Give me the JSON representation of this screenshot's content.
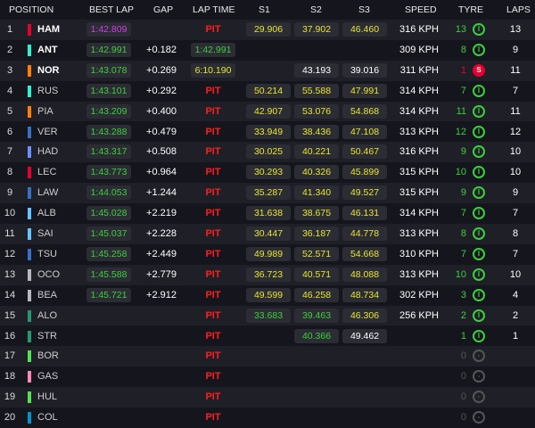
{
  "header": [
    "POSITION",
    "BEST LAP",
    "GAP",
    "LAP TIME",
    "S1",
    "S2",
    "S3",
    "SPEED",
    "TYRE",
    "LAPS"
  ],
  "table": {
    "rows": [
      {
        "pos": 1,
        "code": "HAM",
        "team_color": "#e8002d",
        "best": "1:42.809",
        "best_color": "#d33ee8",
        "gap": null,
        "lap": "PIT",
        "lap_color": "#ff1e1e",
        "s": [
          "29.906",
          "37.902",
          "46.460"
        ],
        "sc": [
          "#e6e62e",
          "#e6e62e",
          "#e6e62e"
        ],
        "speed": "316 KPH",
        "tyre_age": 13,
        "tyre": "I",
        "tyre_color": "#3ccf3c",
        "laps": 13
      },
      {
        "pos": 2,
        "code": "ANT",
        "team_color": "#27f4d2",
        "best": "1:42.991",
        "best_color": "#3ccf3c",
        "gap": "+0.182",
        "lap": "1:42.991",
        "lap_color": "#3ccf3c",
        "s": [
          null,
          null,
          null
        ],
        "sc": [
          "#fff",
          "#fff",
          "#fff"
        ],
        "speed": "309 KPH",
        "tyre_age": 8,
        "tyre": "I",
        "tyre_color": "#3ccf3c",
        "laps": 9
      },
      {
        "pos": 3,
        "code": "NOR",
        "team_color": "#ff8000",
        "best": "1:43.078",
        "best_color": "#3ccf3c",
        "gap": "+0.269",
        "lap": "6:10.190",
        "lap_color": "#e6e62e",
        "s": [
          null,
          "43.193",
          "39.016"
        ],
        "sc": [
          "#fff",
          "#fff",
          "#fff"
        ],
        "speed": "311 KPH",
        "tyre_age": 1,
        "tyre": "S",
        "tyre_color": "#e8002d",
        "laps": 11
      },
      {
        "pos": 4,
        "code": "RUS",
        "team_color": "#27f4d2",
        "best": "1:43.101",
        "best_color": "#3ccf3c",
        "gap": "+0.292",
        "lap": "PIT",
        "lap_color": "#ff1e1e",
        "s": [
          "50.214",
          "55.588",
          "47.991"
        ],
        "sc": [
          "#e6e62e",
          "#e6e62e",
          "#e6e62e"
        ],
        "speed": "314 KPH",
        "tyre_age": 7,
        "tyre": "I",
        "tyre_color": "#3ccf3c",
        "laps": 7
      },
      {
        "pos": 5,
        "code": "PIA",
        "team_color": "#ff8000",
        "best": "1:43.209",
        "best_color": "#3ccf3c",
        "gap": "+0.400",
        "lap": "PIT",
        "lap_color": "#ff1e1e",
        "s": [
          "42.907",
          "53.076",
          "54.868"
        ],
        "sc": [
          "#e6e62e",
          "#e6e62e",
          "#e6e62e"
        ],
        "speed": "314 KPH",
        "tyre_age": 11,
        "tyre": "I",
        "tyre_color": "#3ccf3c",
        "laps": 11
      },
      {
        "pos": 6,
        "code": "VER",
        "team_color": "#3671c6",
        "best": "1:43.288",
        "best_color": "#3ccf3c",
        "gap": "+0.479",
        "lap": "PIT",
        "lap_color": "#ff1e1e",
        "s": [
          "33.949",
          "38.436",
          "47.108"
        ],
        "sc": [
          "#e6e62e",
          "#e6e62e",
          "#e6e62e"
        ],
        "speed": "313 KPH",
        "tyre_age": 12,
        "tyre": "I",
        "tyre_color": "#3ccf3c",
        "laps": 12
      },
      {
        "pos": 7,
        "code": "HAD",
        "team_color": "#6692ff",
        "best": "1:43.317",
        "best_color": "#3ccf3c",
        "gap": "+0.508",
        "lap": "PIT",
        "lap_color": "#ff1e1e",
        "s": [
          "30.025",
          "40.221",
          "50.467"
        ],
        "sc": [
          "#e6e62e",
          "#e6e62e",
          "#e6e62e"
        ],
        "speed": "316 KPH",
        "tyre_age": 9,
        "tyre": "I",
        "tyre_color": "#3ccf3c",
        "laps": 10
      },
      {
        "pos": 8,
        "code": "LEC",
        "team_color": "#e8002d",
        "best": "1:43.773",
        "best_color": "#3ccf3c",
        "gap": "+0.964",
        "lap": "PIT",
        "lap_color": "#ff1e1e",
        "s": [
          "30.293",
          "40.326",
          "45.899"
        ],
        "sc": [
          "#e6e62e",
          "#e6e62e",
          "#e6e62e"
        ],
        "speed": "315 KPH",
        "tyre_age": 10,
        "tyre": "I",
        "tyre_color": "#3ccf3c",
        "laps": 10
      },
      {
        "pos": 9,
        "code": "LAW",
        "team_color": "#3671c6",
        "best": "1:44.053",
        "best_color": "#3ccf3c",
        "gap": "+1.244",
        "lap": "PIT",
        "lap_color": "#ff1e1e",
        "s": [
          "35.287",
          "41.340",
          "49.527"
        ],
        "sc": [
          "#e6e62e",
          "#e6e62e",
          "#e6e62e"
        ],
        "speed": "315 KPH",
        "tyre_age": 9,
        "tyre": "I",
        "tyre_color": "#3ccf3c",
        "laps": 9
      },
      {
        "pos": 10,
        "code": "ALB",
        "team_color": "#64c4ff",
        "best": "1:45.028",
        "best_color": "#3ccf3c",
        "gap": "+2.219",
        "lap": "PIT",
        "lap_color": "#ff1e1e",
        "s": [
          "31.638",
          "38.675",
          "46.131"
        ],
        "sc": [
          "#e6e62e",
          "#e6e62e",
          "#e6e62e"
        ],
        "speed": "314 KPH",
        "tyre_age": 7,
        "tyre": "I",
        "tyre_color": "#3ccf3c",
        "laps": 7
      },
      {
        "pos": 11,
        "code": "SAI",
        "team_color": "#64c4ff",
        "best": "1:45.037",
        "best_color": "#3ccf3c",
        "gap": "+2.228",
        "lap": "PIT",
        "lap_color": "#ff1e1e",
        "s": [
          "30.447",
          "36.187",
          "44.778"
        ],
        "sc": [
          "#e6e62e",
          "#e6e62e",
          "#e6e62e"
        ],
        "speed": "313 KPH",
        "tyre_age": 8,
        "tyre": "I",
        "tyre_color": "#3ccf3c",
        "laps": 8
      },
      {
        "pos": 12,
        "code": "TSU",
        "team_color": "#3671c6",
        "best": "1:45.258",
        "best_color": "#3ccf3c",
        "gap": "+2.449",
        "lap": "PIT",
        "lap_color": "#ff1e1e",
        "s": [
          "49.989",
          "52.571",
          "54.668"
        ],
        "sc": [
          "#e6e62e",
          "#e6e62e",
          "#e6e62e"
        ],
        "speed": "310 KPH",
        "tyre_age": 7,
        "tyre": "I",
        "tyre_color": "#3ccf3c",
        "laps": 7
      },
      {
        "pos": 13,
        "code": "OCO",
        "team_color": "#b6babd",
        "best": "1:45.588",
        "best_color": "#3ccf3c",
        "gap": "+2.779",
        "lap": "PIT",
        "lap_color": "#ff1e1e",
        "s": [
          "36.723",
          "40.571",
          "48.088"
        ],
        "sc": [
          "#e6e62e",
          "#e6e62e",
          "#e6e62e"
        ],
        "speed": "313 KPH",
        "tyre_age": 10,
        "tyre": "I",
        "tyre_color": "#3ccf3c",
        "laps": 10
      },
      {
        "pos": 14,
        "code": "BEA",
        "team_color": "#b6babd",
        "best": "1:45.721",
        "best_color": "#3ccf3c",
        "gap": "+2.912",
        "lap": "PIT",
        "lap_color": "#ff1e1e",
        "s": [
          "49.599",
          "46.258",
          "48.734"
        ],
        "sc": [
          "#e6e62e",
          "#e6e62e",
          "#e6e62e"
        ],
        "speed": "302 KPH",
        "tyre_age": 3,
        "tyre": "I",
        "tyre_color": "#3ccf3c",
        "laps": 4
      },
      {
        "pos": 15,
        "code": "ALO",
        "team_color": "#229971",
        "best": null,
        "best_color": "#3ccf3c",
        "gap": null,
        "lap": "PIT",
        "lap_color": "#ff1e1e",
        "s": [
          "33.683",
          "39.463",
          "46.306"
        ],
        "sc": [
          "#3ccf3c",
          "#3ccf3c",
          "#e6e62e"
        ],
        "speed": "256 KPH",
        "tyre_age": 2,
        "tyre": "I",
        "tyre_color": "#3ccf3c",
        "laps": 2
      },
      {
        "pos": 16,
        "code": "STR",
        "team_color": "#229971",
        "best": null,
        "best_color": "#3ccf3c",
        "gap": null,
        "lap": "PIT",
        "lap_color": "#ff1e1e",
        "s": [
          null,
          "40.366",
          "49.462"
        ],
        "sc": [
          "#fff",
          "#3ccf3c",
          "#fff"
        ],
        "speed": null,
        "tyre_age": 1,
        "tyre": "I",
        "tyre_color": "#3ccf3c",
        "laps": 1
      },
      {
        "pos": 17,
        "code": "BOR",
        "team_color": "#52e252",
        "best": null,
        "best_color": "#3ccf3c",
        "gap": null,
        "lap": "PIT",
        "lap_color": "#ff1e1e",
        "s": [
          null,
          null,
          null
        ],
        "sc": [
          "#fff",
          "#fff",
          "#fff"
        ],
        "speed": null,
        "tyre_age": 0,
        "tyre": "-",
        "tyre_color": "#555",
        "laps": null
      },
      {
        "pos": 18,
        "code": "GAS",
        "team_color": "#ff87bc",
        "best": null,
        "best_color": "#3ccf3c",
        "gap": null,
        "lap": "PIT",
        "lap_color": "#ff1e1e",
        "s": [
          null,
          null,
          null
        ],
        "sc": [
          "#fff",
          "#fff",
          "#fff"
        ],
        "speed": null,
        "tyre_age": 0,
        "tyre": "-",
        "tyre_color": "#555",
        "laps": null
      },
      {
        "pos": 19,
        "code": "HUL",
        "team_color": "#52e252",
        "best": null,
        "best_color": "#3ccf3c",
        "gap": null,
        "lap": "PIT",
        "lap_color": "#ff1e1e",
        "s": [
          null,
          null,
          null
        ],
        "sc": [
          "#fff",
          "#fff",
          "#fff"
        ],
        "speed": null,
        "tyre_age": 0,
        "tyre": "-",
        "tyre_color": "#555",
        "laps": null
      },
      {
        "pos": 20,
        "code": "COL",
        "team_color": "#0093cc",
        "best": null,
        "best_color": "#3ccf3c",
        "gap": null,
        "lap": "PIT",
        "lap_color": "#ff1e1e",
        "s": [
          null,
          null,
          null
        ],
        "sc": [
          "#fff",
          "#fff",
          "#fff"
        ],
        "speed": null,
        "tyre_age": 0,
        "tyre": "-",
        "tyre_color": "#555",
        "laps": null
      }
    ]
  }
}
